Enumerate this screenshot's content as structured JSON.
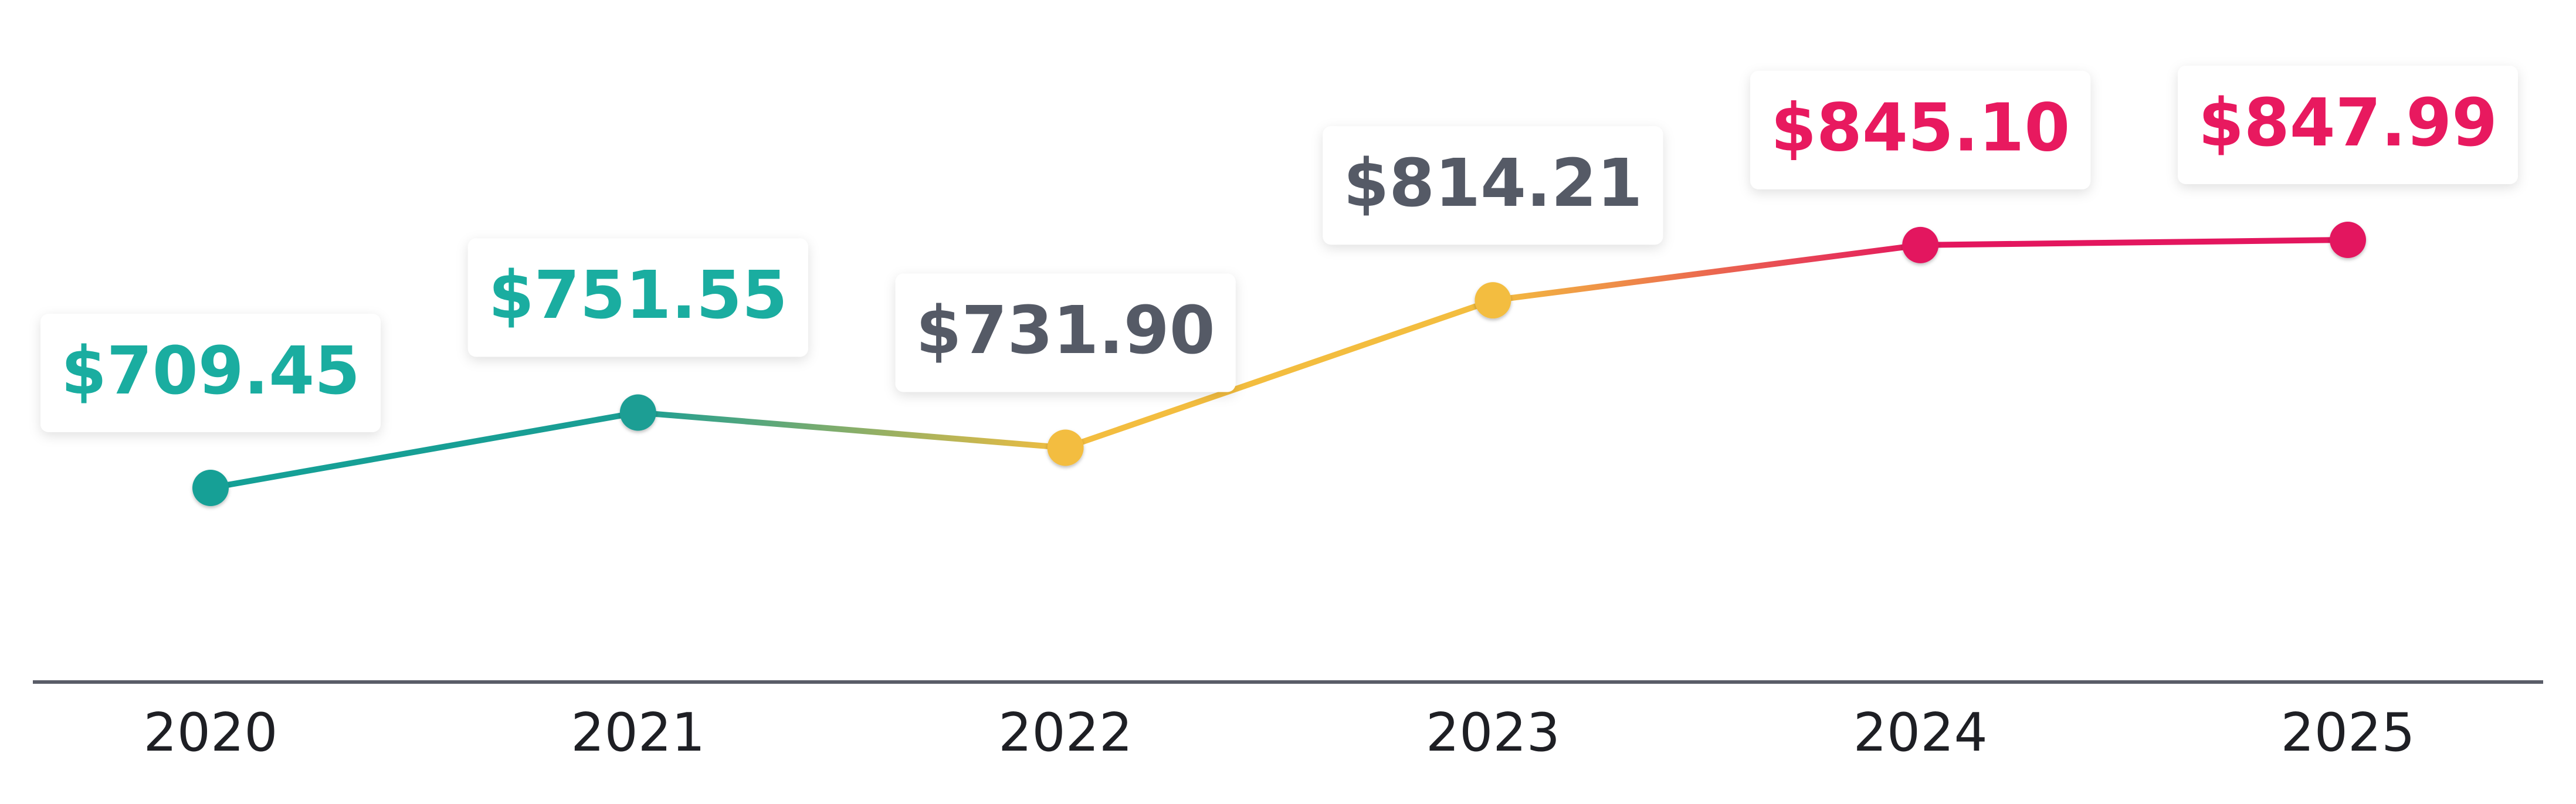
{
  "chart_data": {
    "type": "line",
    "categories": [
      "2020",
      "2021",
      "2022",
      "2023",
      "2024",
      "2025"
    ],
    "values": [
      709.45,
      751.55,
      731.9,
      814.21,
      845.1,
      847.99
    ],
    "value_labels": [
      "$709.45",
      "$751.55",
      "$731.90",
      "$814.21",
      "$845.10",
      "$847.99"
    ],
    "point_colors": [
      "#14a096",
      "#1a9e94",
      "#f3bd3f",
      "#f3bd3f",
      "#e3165e",
      "#e3165e"
    ],
    "label_colors": [
      "#1aada0",
      "#1aada0",
      "#555a66",
      "#555a66",
      "#e8195f",
      "#e8195f"
    ],
    "axis_color": "#5a5d68"
  }
}
